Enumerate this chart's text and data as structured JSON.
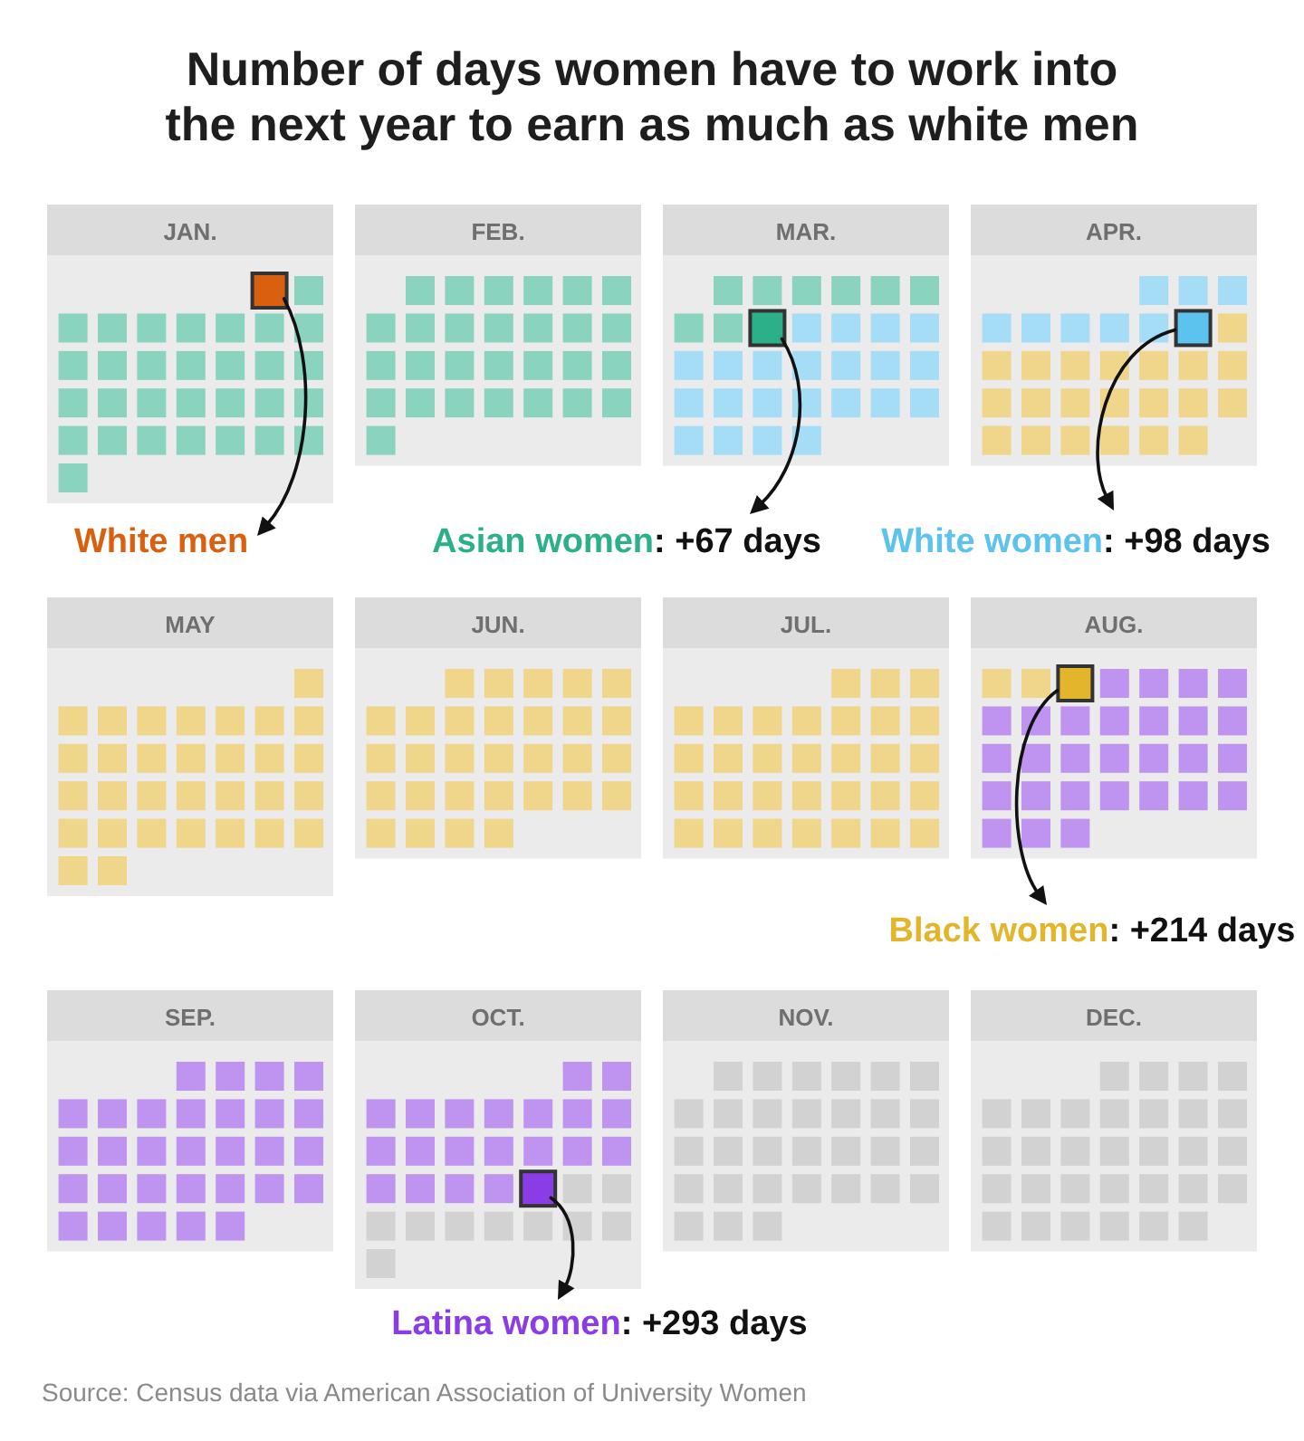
{
  "chart_data": {
    "type": "other",
    "title": "Number of days women have to work into the next year to earn as much as white men",
    "categories": [
      "White men",
      "Asian women",
      "White women",
      "Black women",
      "Latina women"
    ],
    "values": [
      null,
      67,
      98,
      214,
      293
    ],
    "value_labels": [
      null,
      ": +67 days",
      ": +98 days",
      ": +214 days",
      ": +293 days"
    ],
    "colors": [
      "#d9600f",
      "#2bb08a",
      "#5cc2ee",
      "#e2b52b",
      "#8a3de6"
    ],
    "annotations": [
      "JAN.",
      "FEB.",
      "MAR.",
      "APR.",
      "MAY",
      "JUN.",
      "JUL.",
      "AUG.",
      "SEP.",
      "OCT.",
      "NOV.",
      "DEC.",
      "Source: Census data via American Association of University Women"
    ]
  }
}
